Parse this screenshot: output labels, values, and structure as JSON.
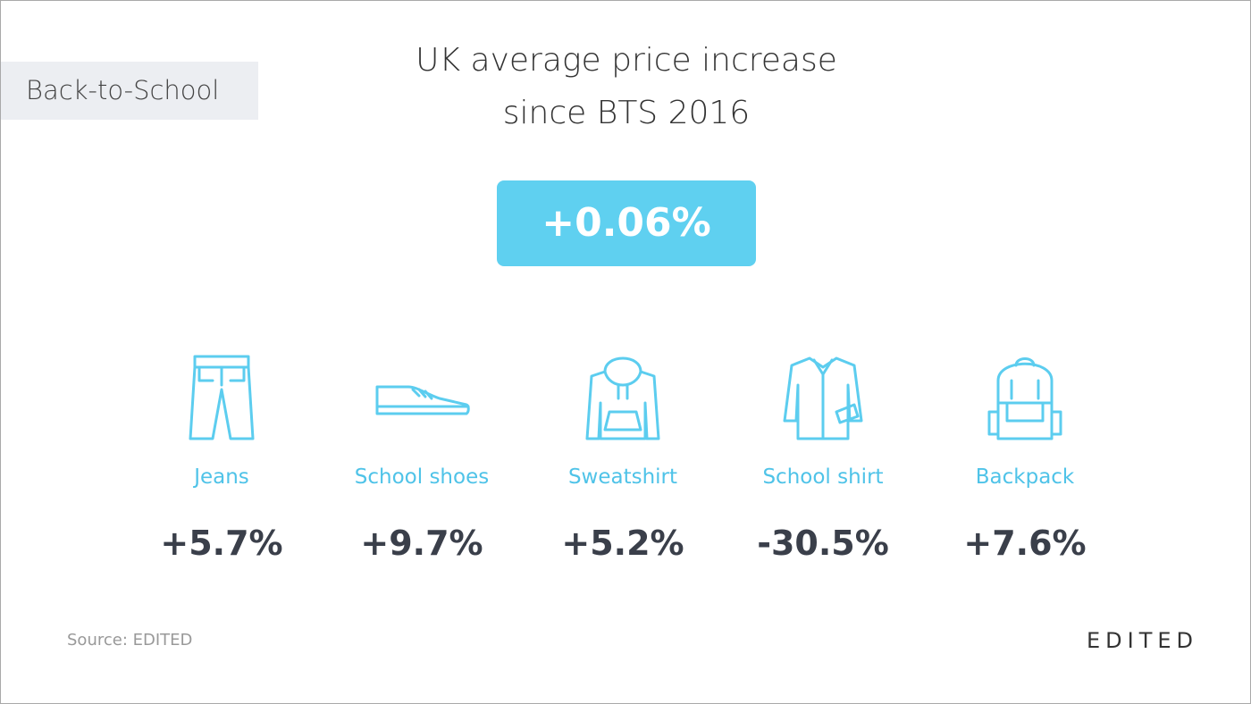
{
  "tag": "Back-to-School",
  "title": [
    "UK average price increase",
    "since BTS 2016"
  ],
  "headline": "+0.06%",
  "items": [
    {
      "name": "Jeans",
      "change": "+5.7%"
    },
    {
      "name": "School shoes",
      "change": "+9.7%"
    },
    {
      "name": "Sweatshirt",
      "change": "+5.2%"
    },
    {
      "name": "School shirt",
      "change": "-30.5%"
    },
    {
      "name": "Backpack",
      "change": "+7.6%"
    }
  ],
  "source": "Source: EDITED",
  "logo": "EDITED"
}
